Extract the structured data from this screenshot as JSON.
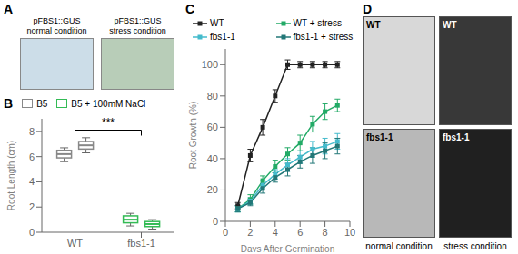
{
  "chart_data": [
    {
      "type": "image",
      "title": "A",
      "categories": [
        "pFBS1::GUS\nnormal condition",
        "pFBS1::GUS\nstress condition"
      ],
      "colors": [
        "#ccdde8",
        "#b8cdb8"
      ]
    },
    {
      "type": "box",
      "title": "B",
      "categories": [
        "WT",
        "fbs1-1"
      ],
      "colors": [
        "#888888",
        "#33bb55"
      ],
      "ylabel": "Root Length (cm)",
      "ylim": [
        0,
        9
      ],
      "yticks": [
        0,
        2,
        4,
        6,
        8
      ],
      "grid": false,
      "series": [
        {
          "name": "B5",
          "color": "#888888",
          "median": [
            6.2,
            1.0
          ],
          "q1": [
            5.9,
            0.75
          ],
          "q3": [
            6.5,
            1.3
          ],
          "min": [
            5.6,
            0.5
          ],
          "max": [
            6.7,
            1.5
          ]
        },
        {
          "name": "B5 + 100mM NaCl",
          "color": "#33bb55",
          "median": [
            6.9,
            0.65
          ],
          "q1": [
            6.6,
            0.45
          ],
          "q3": [
            7.2,
            0.85
          ],
          "min": [
            6.3,
            0.25
          ],
          "max": [
            7.5,
            1.0
          ]
        }
      ],
      "annotations": [
        {
          "text": "***",
          "y": 8.1,
          "x": [
            "WT",
            "fbs1-1"
          ]
        }
      ]
    },
    {
      "type": "line",
      "title": "C",
      "xlabel": "Days After Germination",
      "ylabel": "Root Growth (%)",
      "x": [
        1,
        2,
        3,
        4,
        5,
        6,
        7,
        8,
        9
      ],
      "xlim": [
        0,
        10
      ],
      "xticks": [
        0,
        2,
        4,
        6,
        8,
        10
      ],
      "ylim": [
        0,
        110
      ],
      "yticks": [
        0,
        20,
        40,
        60,
        80,
        100
      ],
      "grid": false,
      "series": [
        {
          "name": "WT",
          "color": "#222222",
          "marker": "square",
          "values": [
            10,
            42,
            60,
            80,
            100,
            100,
            100,
            100,
            100
          ],
          "errors": [
            2,
            4,
            5,
            4,
            3,
            2,
            2,
            2,
            2
          ]
        },
        {
          "name": "WT + stress",
          "color": "#22aa66",
          "marker": "square",
          "values": [
            8,
            14,
            26,
            35,
            43,
            50,
            62,
            70,
            74
          ],
          "errors": [
            2,
            3,
            3,
            4,
            4,
            5,
            5,
            5,
            4
          ]
        },
        {
          "name": "fbs1-1",
          "color": "#44bbcc",
          "marker": "square",
          "values": [
            8,
            13,
            23,
            30,
            36,
            41,
            46,
            48,
            51
          ],
          "errors": [
            2,
            2,
            3,
            3,
            4,
            4,
            5,
            5,
            5
          ]
        },
        {
          "name": "fbs1-1 + stress",
          "color": "#227777",
          "marker": "square",
          "values": [
            8,
            12,
            21,
            28,
            33,
            38,
            42,
            45,
            48
          ],
          "errors": [
            2,
            2,
            3,
            3,
            4,
            4,
            5,
            5,
            5
          ]
        }
      ]
    },
    {
      "type": "image",
      "title": "D",
      "categories": [
        "normal condition",
        "stress condition"
      ],
      "series": [
        {
          "name": "WT",
          "colors": [
            "#d8d8d8",
            "#383838"
          ]
        },
        {
          "name": "fbs1-1",
          "colors": [
            "#b8b8b8",
            "#202020"
          ]
        }
      ]
    }
  ]
}
